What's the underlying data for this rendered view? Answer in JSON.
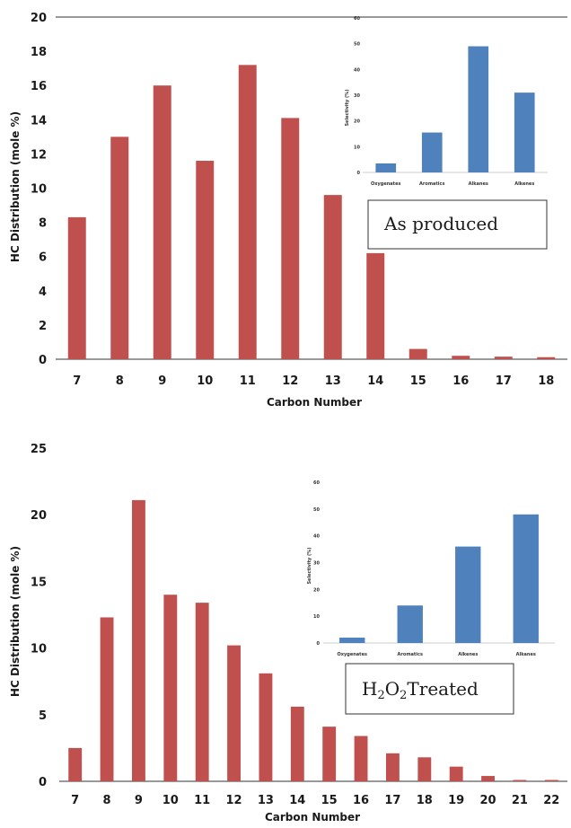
{
  "colors": {
    "main_bar": "#c0504d",
    "inset_bar": "#4f81bd"
  },
  "chart_data": [
    {
      "type": "bar",
      "ylabel": "HC Distribution (mole %)",
      "xlabel": "Carbon Number",
      "ylim": [
        0,
        20
      ],
      "yticks": [
        "0",
        "2",
        "4",
        "6",
        "8",
        "10",
        "12",
        "14",
        "16",
        "18",
        "20"
      ],
      "categories": [
        "7",
        "8",
        "9",
        "10",
        "11",
        "12",
        "13",
        "14",
        "15",
        "16",
        "17",
        "18"
      ],
      "values": [
        8.3,
        13.0,
        16.0,
        11.6,
        17.2,
        14.1,
        9.6,
        6.2,
        0.6,
        0.2,
        0.15,
        0.12
      ],
      "annotation": "As produced",
      "inset": {
        "type": "bar",
        "ylabel": "Selectivity (%)",
        "ylim": [
          0,
          60
        ],
        "yticks": [
          "0",
          "10",
          "20",
          "30",
          "40",
          "50",
          "60"
        ],
        "categories": [
          "Oxygenates",
          "Aromatics",
          "Alkanes",
          "Alkenes"
        ],
        "values": [
          3.5,
          15.5,
          49.0,
          31.0
        ]
      }
    },
    {
      "type": "bar",
      "ylabel": "HC Distribution (mole %)",
      "xlabel": "Carbon Number",
      "ylim": [
        0,
        25
      ],
      "yticks": [
        "0",
        "5",
        "10",
        "15",
        "20",
        "25"
      ],
      "categories": [
        "7",
        "8",
        "9",
        "10",
        "11",
        "12",
        "13",
        "14",
        "15",
        "16",
        "17",
        "18",
        "19",
        "20",
        "21",
        "22"
      ],
      "values": [
        2.5,
        12.3,
        21.1,
        14.0,
        13.4,
        10.2,
        8.1,
        5.6,
        4.1,
        3.4,
        2.1,
        1.8,
        1.1,
        0.4,
        0.1,
        0.1
      ],
      "annotation_parts": {
        "a": "H",
        "b": "2",
        "c": "O",
        "d": "2",
        "e": "Treated"
      },
      "inset": {
        "type": "bar",
        "ylabel": "Selectivity (%)",
        "ylim": [
          0,
          60
        ],
        "yticks": [
          "0",
          "10",
          "20",
          "30",
          "40",
          "50",
          "60"
        ],
        "categories": [
          "Oxygenates",
          "Aromatics",
          "Alkenes",
          "Alkanes"
        ],
        "values": [
          2.0,
          14.0,
          36.0,
          48.0
        ]
      }
    }
  ]
}
